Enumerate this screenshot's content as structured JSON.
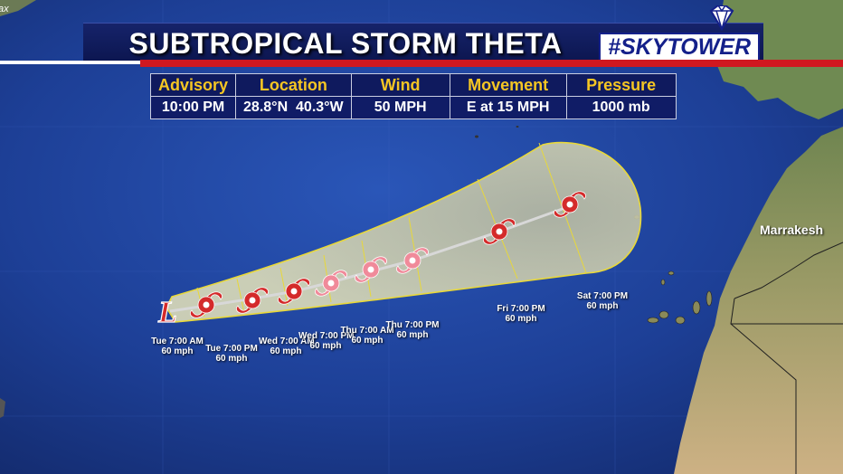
{
  "header": {
    "title": "SUBTROPICAL STORM THETA",
    "brand": "#SKYTOWER",
    "corner_text": "ax"
  },
  "advisory_table": {
    "headers": [
      "Advisory",
      "Location",
      "Wind",
      "Movement",
      "Pressure"
    ],
    "values": [
      "10:00 PM",
      "28.8°N  40.3°W",
      "50 MPH",
      "E at 15 MPH",
      "1000 mb"
    ]
  },
  "map": {
    "city_label": "Marrakesh",
    "current_position_symbol": "L",
    "forecast_points": [
      {
        "time": "Tue 7:00 AM",
        "wind": "60 mph"
      },
      {
        "time": "Tue 7:00 PM",
        "wind": "60 mph"
      },
      {
        "time": "Wed 7:00 AM",
        "wind": "60 mph"
      },
      {
        "time": "Wed 7:00 PM",
        "wind": "60 mph"
      },
      {
        "time": "Thu 7:00 AM",
        "wind": "60 mph"
      },
      {
        "time": "Thu 7:00 PM",
        "wind": "60 mph"
      },
      {
        "time": "Fri 7:00 PM",
        "wind": "60 mph"
      },
      {
        "time": "Sat 7:00 PM",
        "wind": "60 mph"
      }
    ],
    "colors": {
      "ocean": "#1b3a8c",
      "cone_fill": "#d8d8b0",
      "cone_outline": "#e8d83a",
      "storm_red": "#d42a2a",
      "storm_pink": "#f08a9a",
      "land": "#7a8a58",
      "desert": "#c8a878"
    }
  }
}
